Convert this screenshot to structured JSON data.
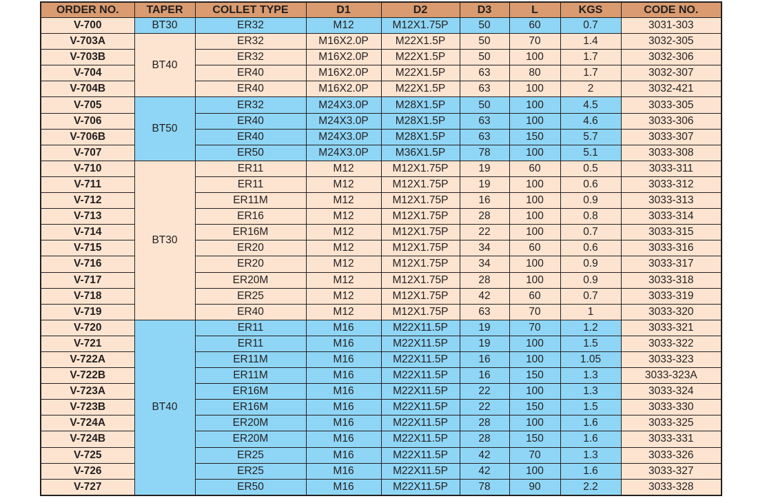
{
  "colors": {
    "header": "#d99b6f",
    "peach": "#fde4d0",
    "blue": "#8fd6f6"
  },
  "columns": [
    "ORDER NO.",
    "TAPER",
    "COLLET TYPE",
    "D1",
    "D2",
    "D3",
    "L",
    "KGS",
    "CODE NO."
  ],
  "groups": [
    {
      "taper": "BT30",
      "highlight": true,
      "rows": [
        [
          "V-700",
          "ER32",
          "M12",
          "M12X1.75P",
          "50",
          "60",
          "0.7",
          "3031-303"
        ]
      ]
    },
    {
      "taper": "BT40",
      "highlight": false,
      "rows": [
        [
          "V-703A",
          "ER32",
          "M16X2.0P",
          "M22X1.5P",
          "50",
          "70",
          "1.4",
          "3032-305"
        ],
        [
          "V-703B",
          "ER32",
          "M16X2.0P",
          "M22X1.5P",
          "50",
          "100",
          "1.7",
          "3032-306"
        ],
        [
          "V-704",
          "ER40",
          "M16X2.0P",
          "M22X1.5P",
          "63",
          "80",
          "1.7",
          "3032-307"
        ],
        [
          "V-704B",
          "ER40",
          "M16X2.0P",
          "M22X1.5P",
          "63",
          "100",
          "2",
          "3032-421"
        ]
      ]
    },
    {
      "taper": "BT50",
      "highlight": true,
      "rows": [
        [
          "V-705",
          "ER32",
          "M24X3.0P",
          "M28X1.5P",
          "50",
          "100",
          "4.5",
          "3033-305"
        ],
        [
          "V-706",
          "ER40",
          "M24X3.0P",
          "M28X1.5P",
          "63",
          "100",
          "4.6",
          "3033-306"
        ],
        [
          "V-706B",
          "ER40",
          "M24X3.0P",
          "M28X1.5P",
          "63",
          "150",
          "5.7",
          "3033-307"
        ],
        [
          "V-707",
          "ER50",
          "M24X3.0P",
          "M36X1.5P",
          "78",
          "100",
          "5.1",
          "3033-308"
        ]
      ]
    },
    {
      "taper": "BT30",
      "highlight": false,
      "rows": [
        [
          "V-710",
          "ER11",
          "M12",
          "M12X1.75P",
          "19",
          "60",
          "0.5",
          "3033-311"
        ],
        [
          "V-711",
          "ER11",
          "M12",
          "M12X1.75P",
          "19",
          "100",
          "0.6",
          "3033-312"
        ],
        [
          "V-712",
          "ER11M",
          "M12",
          "M12X1.75P",
          "16",
          "100",
          "0.9",
          "3033-313"
        ],
        [
          "V-713",
          "ER16",
          "M12",
          "M12X1.75P",
          "28",
          "100",
          "0.8",
          "3033-314"
        ],
        [
          "V-714",
          "ER16M",
          "M12",
          "M12X1.75P",
          "22",
          "100",
          "0.7",
          "3033-315"
        ],
        [
          "V-715",
          "ER20",
          "M12",
          "M12X1.75P",
          "34",
          "60",
          "0.6",
          "3033-316"
        ],
        [
          "V-716",
          "ER20",
          "M12",
          "M12X1.75P",
          "34",
          "100",
          "0.9",
          "3033-317"
        ],
        [
          "V-717",
          "ER20M",
          "M12",
          "M12X1.75P",
          "28",
          "100",
          "0.9",
          "3033-318"
        ],
        [
          "V-718",
          "ER25",
          "M12",
          "M12X1.75P",
          "42",
          "60",
          "0.7",
          "3033-319"
        ],
        [
          "V-719",
          "ER40",
          "M12",
          "M12X1.75P",
          "63",
          "70",
          "1",
          "3033-320"
        ]
      ]
    },
    {
      "taper": "BT40",
      "highlight": true,
      "rows": [
        [
          "V-720",
          "ER11",
          "M16",
          "M22X11.5P",
          "19",
          "70",
          "1.2",
          "3033-321"
        ],
        [
          "V-721",
          "ER11",
          "M16",
          "M22X11.5P",
          "19",
          "100",
          "1.5",
          "3033-322"
        ],
        [
          "V-722A",
          "ER11M",
          "M16",
          "M22X11.5P",
          "16",
          "100",
          "1.05",
          "3033-323"
        ],
        [
          "V-722B",
          "ER11M",
          "M16",
          "M22X11.5P",
          "16",
          "150",
          "1.3",
          "3033-323A"
        ],
        [
          "V-723A",
          "ER16M",
          "M16",
          "M22X11.5P",
          "22",
          "100",
          "1.3",
          "3033-324"
        ],
        [
          "V-723B",
          "ER16M",
          "M16",
          "M22X11.5P",
          "22",
          "150",
          "1.5",
          "3033-330"
        ],
        [
          "V-724A",
          "ER20M",
          "M16",
          "M22X11.5P",
          "28",
          "100",
          "1.6",
          "3033-325"
        ],
        [
          "V-724B",
          "ER20M",
          "M16",
          "M22X11.5P",
          "28",
          "150",
          "1.6",
          "3033-331"
        ],
        [
          "V-725",
          "ER25",
          "M16",
          "M22X11.5P",
          "42",
          "70",
          "1.3",
          "3033-326"
        ],
        [
          "V-726",
          "ER25",
          "M16",
          "M22X11.5P",
          "42",
          "100",
          "1.6",
          "3033-327"
        ],
        [
          "V-727",
          "ER50",
          "M16",
          "M22X11.5P",
          "78",
          "90",
          "2.2",
          "3033-328"
        ]
      ]
    }
  ]
}
